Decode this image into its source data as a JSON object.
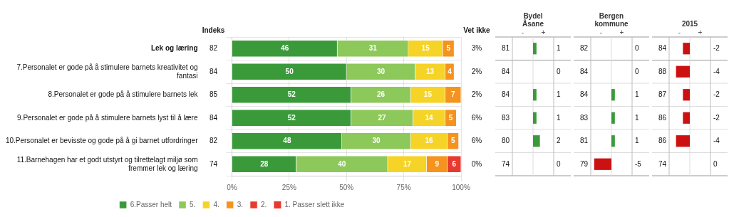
{
  "chart_data": {
    "type": "bar",
    "orientation": "horizontal",
    "stacked": true,
    "data_labels": true,
    "grid": true,
    "legend": "bottom",
    "categories": [
      "Lek og læring",
      "7.Personalet er gode på å stimulere barnets kreativitet og\nfantasi",
      "8.Personalet er gode på å stimulere barnets lek",
      "9.Personalet er gode på å stimulere barnets lyst til å lære",
      "10.Personalet er bevisste og gode på å gi barnet utfordringer",
      "11.Barnehagen har et godt utstyrt og tilrettelagt miljø som\nfremmer lek og læring"
    ],
    "series": [
      {
        "name": "6.Passer helt",
        "color": "#3a9a3a",
        "values": [
          46,
          50,
          52,
          52,
          48,
          28
        ]
      },
      {
        "name": "5.",
        "color": "#8dc85a",
        "values": [
          31,
          30,
          26,
          27,
          30,
          40
        ]
      },
      {
        "name": "4.",
        "color": "#f5d327",
        "values": [
          15,
          13,
          15,
          14,
          16,
          17
        ]
      },
      {
        "name": "3.",
        "color": "#f5931e",
        "values": [
          5,
          4,
          7,
          5,
          5,
          9
        ]
      },
      {
        "name": "2.",
        "color": "#e8392e",
        "values": [
          0,
          0,
          0,
          0,
          0,
          6
        ]
      }
    ],
    "legend_extra": [
      {
        "name": "1. Passer slett ikke",
        "color": "#e8392e"
      }
    ],
    "xlim": [
      0,
      100
    ],
    "xticks": [
      {
        "value": 0,
        "label": "0%"
      },
      {
        "value": 25,
        "label": "25%"
      },
      {
        "value": 50,
        "label": "50%"
      },
      {
        "value": 75,
        "label": "75%"
      },
      {
        "value": 100,
        "label": "100%"
      }
    ],
    "columns": [
      {
        "name": "Indeks",
        "values": [
          82,
          84,
          85,
          84,
          82,
          74
        ]
      },
      {
        "name": "Vet ikke",
        "values": [
          3,
          2,
          2,
          6,
          6,
          0
        ],
        "value_labels": [
          "3%",
          "2%",
          "2%",
          "6%",
          "6%",
          "0%"
        ]
      }
    ],
    "comparisons": [
      {
        "name": "Bydel\nÅsane",
        "values": [
          81,
          84,
          84,
          83,
          80,
          74
        ],
        "diffs": [
          1,
          0,
          1,
          1,
          2,
          0
        ]
      },
      {
        "name": "Bergen\nkommune",
        "values": [
          82,
          84,
          84,
          83,
          81,
          79
        ],
        "diffs": [
          0,
          0,
          1,
          1,
          1,
          -5
        ]
      },
      {
        "name": "2015",
        "values": [
          84,
          88,
          87,
          86,
          86,
          74
        ],
        "diffs": [
          -2,
          -4,
          -2,
          -2,
          -4,
          0
        ]
      }
    ],
    "diff_xlim": [
      -6,
      6
    ],
    "diff_labels": [
      "-",
      "+"
    ],
    "diff_colors": {
      "positive": "#3a9a3a",
      "negative": "#cc1111"
    }
  }
}
